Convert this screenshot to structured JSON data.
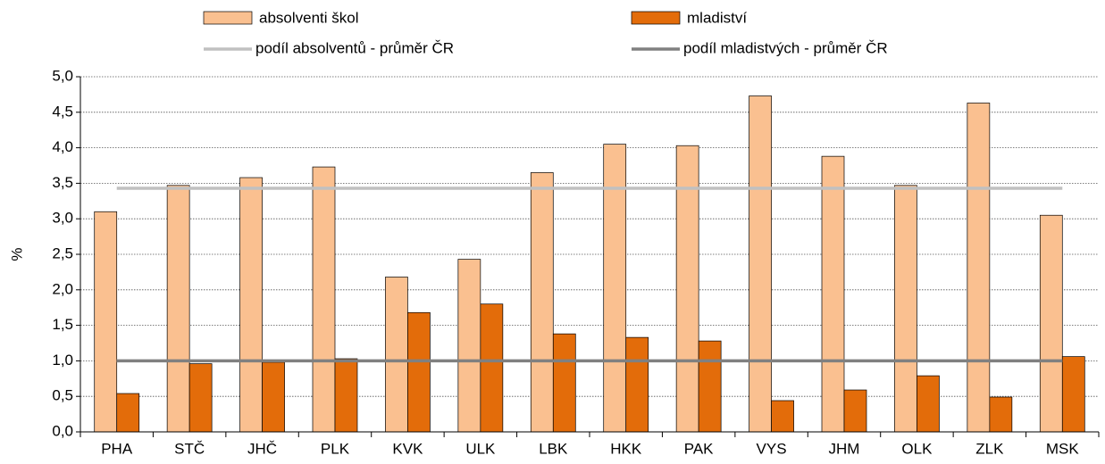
{
  "chart_data": {
    "type": "bar",
    "y_label": "%",
    "categories": [
      "PHA",
      "STČ",
      "JHČ",
      "PLK",
      "KVK",
      "ULK",
      "LBK",
      "HKK",
      "PAK",
      "VYS",
      "JHM",
      "OLK",
      "ZLK",
      "MSK"
    ],
    "series": [
      {
        "name": "absolventi škol",
        "color": "#fac090",
        "values": [
          3.1,
          3.47,
          3.58,
          3.73,
          2.18,
          2.43,
          3.65,
          4.05,
          4.03,
          4.73,
          3.88,
          3.47,
          4.63,
          3.05
        ]
      },
      {
        "name": "mladiství",
        "color": "#e36c0a",
        "values": [
          0.54,
          0.96,
          0.98,
          1.03,
          1.68,
          1.8,
          1.38,
          1.33,
          1.28,
          0.44,
          0.59,
          0.79,
          0.49,
          1.06
        ]
      }
    ],
    "reference_lines": [
      {
        "name": "podíl absolventů - průměr ČR",
        "color": "#c0c0c0",
        "value": 3.43
      },
      {
        "name": "podíl mladistvých - průměr ČR",
        "color": "#808080",
        "value": 1.0
      }
    ],
    "ylim": [
      0,
      5
    ],
    "yticks": [
      {
        "value": 0,
        "label": "0,0"
      },
      {
        "value": 0.5,
        "label": "0,5"
      },
      {
        "value": 1,
        "label": "1,0"
      },
      {
        "value": 1.5,
        "label": "1,5"
      },
      {
        "value": 2,
        "label": "2,0"
      },
      {
        "value": 2.5,
        "label": "2,5"
      },
      {
        "value": 3,
        "label": "3,0"
      },
      {
        "value": 3.5,
        "label": "3,5"
      },
      {
        "value": 4,
        "label": "4,0"
      },
      {
        "value": 4.5,
        "label": "4,5"
      },
      {
        "value": 5,
        "label": "5,0"
      }
    ],
    "grid": true
  }
}
